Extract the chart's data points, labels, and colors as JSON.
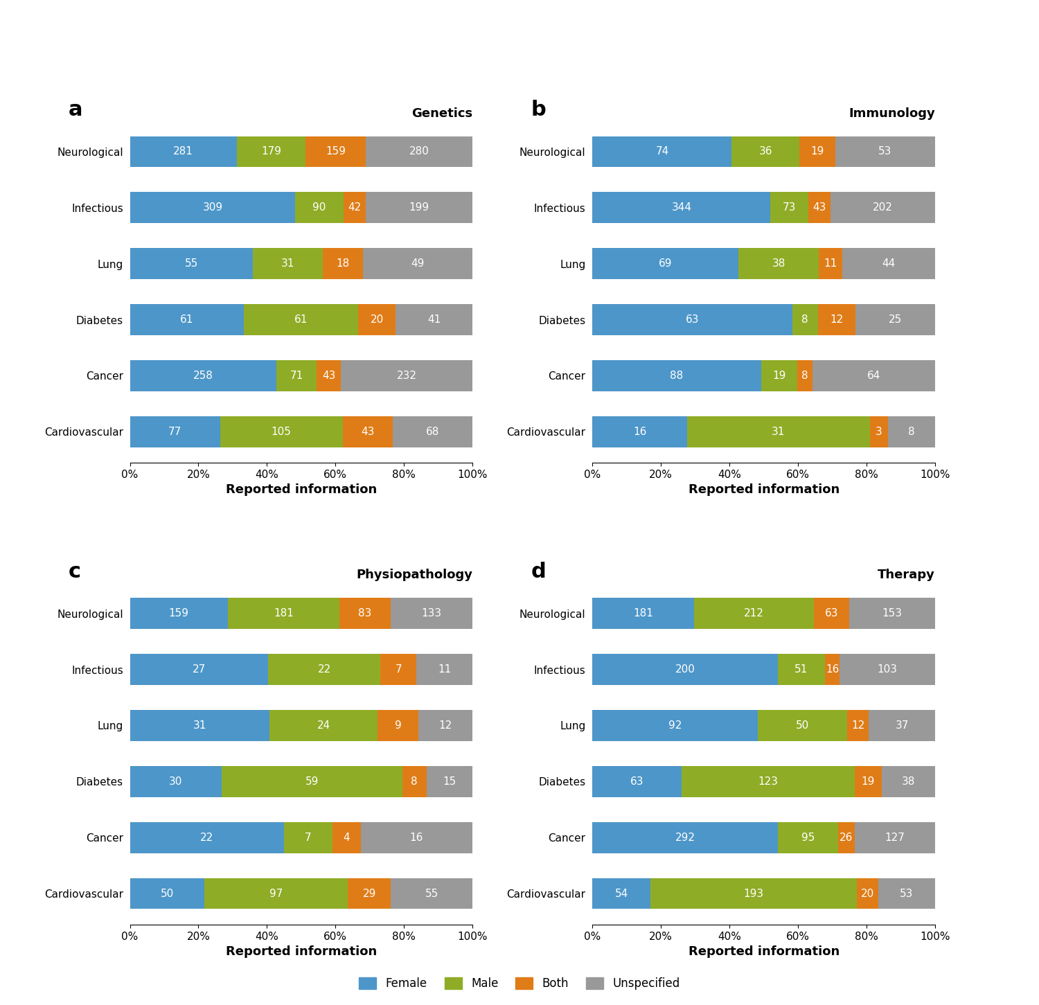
{
  "panels": [
    {
      "label": "a",
      "title": "Genetics",
      "categories": [
        "Neurological",
        "Infectious",
        "Lung",
        "Diabetes",
        "Cancer",
        "Cardiovascular"
      ],
      "female": [
        281,
        309,
        55,
        61,
        258,
        77
      ],
      "male": [
        179,
        90,
        31,
        61,
        71,
        105
      ],
      "both": [
        159,
        42,
        18,
        20,
        43,
        43
      ],
      "unspecified": [
        280,
        199,
        49,
        41,
        232,
        68
      ]
    },
    {
      "label": "b",
      "title": "Immunology",
      "categories": [
        "Neurological",
        "Infectious",
        "Lung",
        "Diabetes",
        "Cancer",
        "Cardiovascular"
      ],
      "female": [
        74,
        344,
        69,
        63,
        88,
        16
      ],
      "male": [
        36,
        73,
        38,
        8,
        19,
        31
      ],
      "both": [
        19,
        43,
        11,
        12,
        8,
        3
      ],
      "unspecified": [
        53,
        202,
        44,
        25,
        64,
        8
      ]
    },
    {
      "label": "c",
      "title": "Physiopathology",
      "categories": [
        "Neurological",
        "Infectious",
        "Lung",
        "Diabetes",
        "Cancer",
        "Cardiovascular"
      ],
      "female": [
        159,
        27,
        31,
        30,
        22,
        50
      ],
      "male": [
        181,
        22,
        24,
        59,
        7,
        97
      ],
      "both": [
        83,
        7,
        9,
        8,
        4,
        29
      ],
      "unspecified": [
        133,
        11,
        12,
        15,
        16,
        55
      ]
    },
    {
      "label": "d",
      "title": "Therapy",
      "categories": [
        "Neurological",
        "Infectious",
        "Lung",
        "Diabetes",
        "Cancer",
        "Cardiovascular"
      ],
      "female": [
        181,
        200,
        92,
        63,
        292,
        54
      ],
      "male": [
        212,
        51,
        50,
        123,
        95,
        193
      ],
      "both": [
        63,
        16,
        12,
        19,
        26,
        20
      ],
      "unspecified": [
        153,
        103,
        37,
        38,
        127,
        53
      ]
    }
  ],
  "colors": {
    "female": "#4d96c9",
    "male": "#8fac26",
    "both": "#e07c17",
    "unspecified": "#999999"
  },
  "xlabel": "Reported information",
  "legend_labels": [
    "Female",
    "Male",
    "Both",
    "Unspecified"
  ],
  "label_fontsize": 22,
  "title_fontsize": 13,
  "tick_fontsize": 11,
  "bar_label_fontsize": 11,
  "xlabel_fontsize": 13,
  "legend_fontsize": 12
}
